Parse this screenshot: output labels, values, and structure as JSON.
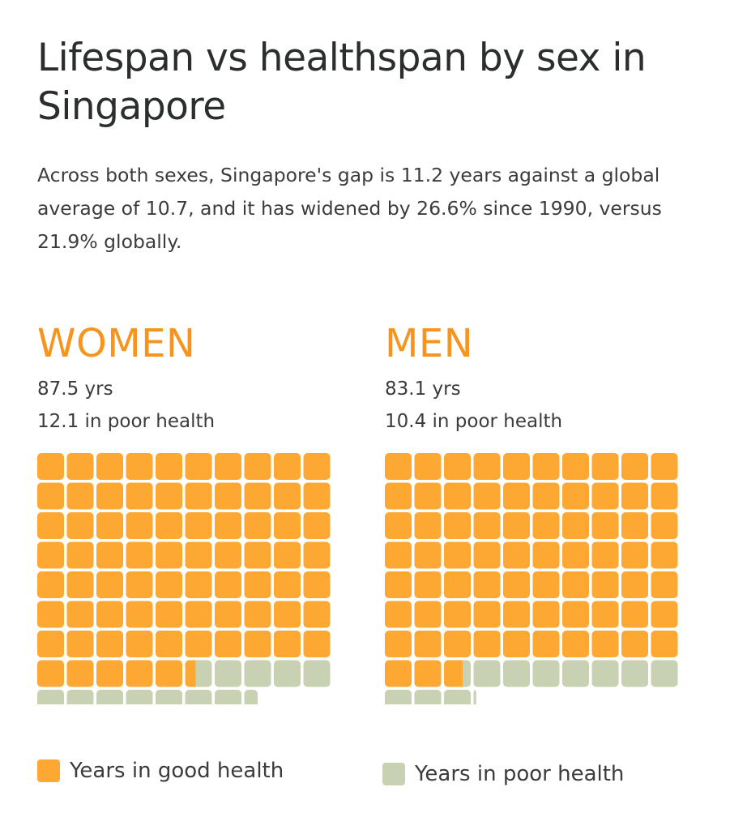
{
  "title": "Lifespan vs healthspan by sex in Singapore",
  "subtitle": "Across both sexes, Singapore's gap is 11.2 years against a global average of 10.7, and it has widened by 26.6% since 1990, versus 21.9% globally.",
  "colors": {
    "good": "#fca833",
    "poor": "#c8d1b1"
  },
  "chart_data": {
    "type": "waffle",
    "unit": "1 square = 1 year",
    "columns": 10,
    "panels": [
      {
        "label": "WOMEN",
        "lifespan_text": "87.5 yrs",
        "poor_health_text": "12.1 in poor health",
        "lifespan_years": 87.5,
        "poor_health_years": 12.1,
        "good_health_years": 75.4
      },
      {
        "label": "MEN",
        "lifespan_text": "83.1 yrs",
        "poor_health_text": "10.4 in poor health",
        "lifespan_years": 83.1,
        "poor_health_years": 10.4,
        "good_health_years": 72.7
      }
    ],
    "legend": [
      {
        "label": "Years in good health",
        "color": "#fca833"
      },
      {
        "label": "Years in poor health",
        "color": "#c8d1b1"
      }
    ]
  }
}
